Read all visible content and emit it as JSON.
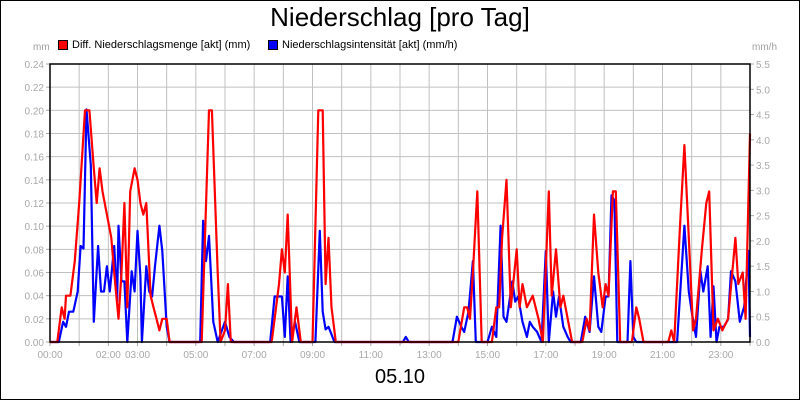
{
  "title": "Niederschlag [pro Tag]",
  "date_label": "05.10",
  "left_unit": "mm",
  "right_unit": "mm/h",
  "legend": [
    {
      "label": "Diff. Niederschlagsmenge [akt] (mm)",
      "color": "#ff0000"
    },
    {
      "label": "Niederschlagsintensität [akt] (mm/h)",
      "color": "#0000ff"
    }
  ],
  "chart_data": {
    "type": "line",
    "title": "Niederschlag [pro Tag]",
    "xlabel": "05.10",
    "ylabel_left": "mm",
    "ylabel_right": "mm/h",
    "x_range_hours": [
      0,
      24
    ],
    "x_tick_labels": [
      "00:00",
      "02:00",
      "03:00",
      "05:00",
      "07:00",
      "09:00",
      "11:00",
      "13:00",
      "15:00",
      "17:00",
      "19:00",
      "21:00",
      "23:00"
    ],
    "x_tick_positions_hours": [
      0,
      2,
      3,
      5,
      7,
      9,
      11,
      13,
      15,
      17,
      19,
      21,
      23
    ],
    "ylim_left": [
      0,
      0.24
    ],
    "y_ticks_left": [
      "0.00",
      "0.02",
      "0.04",
      "0.06",
      "0.08",
      "0.10",
      "0.12",
      "0.14",
      "0.16",
      "0.18",
      "0.20",
      "0.22",
      "0.24"
    ],
    "ylim_right": [
      0,
      5.5
    ],
    "y_ticks_right": [
      "0.0",
      "0.5",
      "1.0",
      "1.5",
      "2.0",
      "2.5",
      "3.0",
      "3.5",
      "4.0",
      "4.5",
      "5.0",
      "5.5"
    ],
    "grid": true,
    "legend_position": "top",
    "series": [
      {
        "name": "Diff. Niederschlagsmenge [akt] (mm)",
        "axis": "left",
        "color": "#ff0000",
        "points": [
          [
            0.0,
            0
          ],
          [
            0.25,
            0
          ],
          [
            0.4,
            0.03
          ],
          [
            0.5,
            0.02
          ],
          [
            0.55,
            0.04
          ],
          [
            0.7,
            0.04
          ],
          [
            0.85,
            0.07
          ],
          [
            1.0,
            0.12
          ],
          [
            1.1,
            0.16
          ],
          [
            1.2,
            0.2
          ],
          [
            1.35,
            0.2
          ],
          [
            1.5,
            0.15
          ],
          [
            1.6,
            0.12
          ],
          [
            1.7,
            0.15
          ],
          [
            1.8,
            0.13
          ],
          [
            1.95,
            0.11
          ],
          [
            2.1,
            0.09
          ],
          [
            2.2,
            0.06
          ],
          [
            2.35,
            0.02
          ],
          [
            2.45,
            0.06
          ],
          [
            2.55,
            0.12
          ],
          [
            2.65,
            0.03
          ],
          [
            2.75,
            0.13
          ],
          [
            2.9,
            0.15
          ],
          [
            3.0,
            0.14
          ],
          [
            3.1,
            0.12
          ],
          [
            3.2,
            0.11
          ],
          [
            3.3,
            0.12
          ],
          [
            3.45,
            0.04
          ],
          [
            3.55,
            0.03
          ],
          [
            3.65,
            0.02
          ],
          [
            3.75,
            0.01
          ],
          [
            3.85,
            0.02
          ],
          [
            4.0,
            0.02
          ],
          [
            4.1,
            0
          ],
          [
            5.2,
            0
          ],
          [
            5.45,
            0.2
          ],
          [
            5.55,
            0.2
          ],
          [
            5.75,
            0.06
          ],
          [
            5.85,
            0
          ],
          [
            6.0,
            0.01
          ],
          [
            6.1,
            0.05
          ],
          [
            6.2,
            0
          ],
          [
            7.6,
            0
          ],
          [
            7.85,
            0.05
          ],
          [
            7.95,
            0.08
          ],
          [
            8.05,
            0.06
          ],
          [
            8.15,
            0.11
          ],
          [
            8.3,
            0
          ],
          [
            8.45,
            0.03
          ],
          [
            8.6,
            0
          ],
          [
            9.0,
            0
          ],
          [
            9.2,
            0.2
          ],
          [
            9.35,
            0.2
          ],
          [
            9.45,
            0.05
          ],
          [
            9.55,
            0.09
          ],
          [
            9.65,
            0.03
          ],
          [
            9.8,
            0
          ],
          [
            14.0,
            0
          ],
          [
            14.2,
            0.03
          ],
          [
            14.3,
            0.03
          ],
          [
            14.4,
            0.02
          ],
          [
            14.5,
            0.06
          ],
          [
            14.65,
            0.13
          ],
          [
            14.8,
            0
          ],
          [
            15.15,
            0
          ],
          [
            15.3,
            0.03
          ],
          [
            15.4,
            0.03
          ],
          [
            15.5,
            0.09
          ],
          [
            15.65,
            0.14
          ],
          [
            15.8,
            0.03
          ],
          [
            16.0,
            0.08
          ],
          [
            16.1,
            0.03
          ],
          [
            16.2,
            0.05
          ],
          [
            16.35,
            0.03
          ],
          [
            16.55,
            0.04
          ],
          [
            16.75,
            0.02
          ],
          [
            16.9,
            0
          ],
          [
            17.1,
            0.13
          ],
          [
            17.2,
            0.04
          ],
          [
            17.35,
            0.08
          ],
          [
            17.5,
            0.03
          ],
          [
            17.6,
            0.04
          ],
          [
            17.75,
            0.02
          ],
          [
            17.9,
            0
          ],
          [
            18.25,
            0
          ],
          [
            18.4,
            0.02
          ],
          [
            18.5,
            0.01
          ],
          [
            18.65,
            0.11
          ],
          [
            18.8,
            0.06
          ],
          [
            18.95,
            0.03
          ],
          [
            19.05,
            0.05
          ],
          [
            19.15,
            0.04
          ],
          [
            19.3,
            0.13
          ],
          [
            19.4,
            0.13
          ],
          [
            19.55,
            0
          ],
          [
            19.95,
            0
          ],
          [
            20.1,
            0.03
          ],
          [
            20.2,
            0.02
          ],
          [
            20.35,
            0
          ],
          [
            21.2,
            0
          ],
          [
            21.3,
            0.01
          ],
          [
            21.4,
            0
          ],
          [
            21.6,
            0.1
          ],
          [
            21.75,
            0.17
          ],
          [
            21.9,
            0.09
          ],
          [
            22.05,
            0.01
          ],
          [
            22.15,
            0.02
          ],
          [
            22.35,
            0.08
          ],
          [
            22.5,
            0.12
          ],
          [
            22.6,
            0.13
          ],
          [
            22.75,
            0.01
          ],
          [
            22.9,
            0.02
          ],
          [
            23.05,
            0.01
          ],
          [
            23.25,
            0.02
          ],
          [
            23.5,
            0.09
          ],
          [
            23.6,
            0.05
          ],
          [
            23.75,
            0.06
          ],
          [
            23.85,
            0.02
          ],
          [
            24.0,
            0.18
          ]
        ]
      },
      {
        "name": "Niederschlagsintensität [akt] (mm/h)",
        "axis": "right",
        "color": "#0000ff",
        "points": [
          [
            0.0,
            0
          ],
          [
            0.3,
            0
          ],
          [
            0.45,
            0.4
          ],
          [
            0.55,
            0.3
          ],
          [
            0.65,
            0.6
          ],
          [
            0.8,
            0.6
          ],
          [
            0.95,
            1.0
          ],
          [
            1.05,
            1.9
          ],
          [
            1.15,
            1.85
          ],
          [
            1.25,
            4.6
          ],
          [
            1.4,
            3.5
          ],
          [
            1.5,
            0.4
          ],
          [
            1.65,
            1.9
          ],
          [
            1.75,
            1.0
          ],
          [
            1.85,
            1.0
          ],
          [
            1.95,
            1.5
          ],
          [
            2.05,
            1.0
          ],
          [
            2.2,
            1.9
          ],
          [
            2.3,
            0.8
          ],
          [
            2.35,
            2.3
          ],
          [
            2.45,
            1.2
          ],
          [
            2.55,
            1.2
          ],
          [
            2.65,
            0
          ],
          [
            2.8,
            1.4
          ],
          [
            2.9,
            1.0
          ],
          [
            3.0,
            2.2
          ],
          [
            3.1,
            1.3
          ],
          [
            3.15,
            0
          ],
          [
            3.3,
            1.5
          ],
          [
            3.4,
            1.0
          ],
          [
            3.5,
            0.9
          ],
          [
            3.6,
            1.5
          ],
          [
            3.75,
            2.3
          ],
          [
            3.85,
            1.8
          ],
          [
            4.0,
            0.3
          ],
          [
            4.1,
            0
          ],
          [
            5.15,
            0
          ],
          [
            5.25,
            2.4
          ],
          [
            5.35,
            1.6
          ],
          [
            5.45,
            2.1
          ],
          [
            5.6,
            0.4
          ],
          [
            5.75,
            0
          ],
          [
            6.0,
            0.4
          ],
          [
            6.15,
            0.1
          ],
          [
            6.3,
            0
          ],
          [
            7.55,
            0
          ],
          [
            7.7,
            0.9
          ],
          [
            7.95,
            0.9
          ],
          [
            8.05,
            0.1
          ],
          [
            8.15,
            1.3
          ],
          [
            8.25,
            0
          ],
          [
            8.4,
            0.4
          ],
          [
            8.55,
            0
          ],
          [
            9.1,
            0
          ],
          [
            9.25,
            2.2
          ],
          [
            9.35,
            0.6
          ],
          [
            9.45,
            0.25
          ],
          [
            9.55,
            0.3
          ],
          [
            9.65,
            0.15
          ],
          [
            9.75,
            0
          ],
          [
            12.1,
            0
          ],
          [
            12.2,
            0.1
          ],
          [
            12.3,
            0
          ],
          [
            13.8,
            0
          ],
          [
            13.95,
            0.5
          ],
          [
            14.1,
            0.3
          ],
          [
            14.2,
            0.2
          ],
          [
            14.35,
            0.6
          ],
          [
            14.5,
            1.6
          ],
          [
            14.6,
            0
          ],
          [
            15.0,
            0
          ],
          [
            15.15,
            0.3
          ],
          [
            15.3,
            0.1
          ],
          [
            15.45,
            2.3
          ],
          [
            15.55,
            0.5
          ],
          [
            15.65,
            0.4
          ],
          [
            15.85,
            1.2
          ],
          [
            15.95,
            0.8
          ],
          [
            16.05,
            0.9
          ],
          [
            16.2,
            0.4
          ],
          [
            16.35,
            0.1
          ],
          [
            16.45,
            0.4
          ],
          [
            16.55,
            0.3
          ],
          [
            16.7,
            0.2
          ],
          [
            16.85,
            0
          ],
          [
            17.0,
            1.8
          ],
          [
            17.1,
            0
          ],
          [
            17.25,
            1.0
          ],
          [
            17.35,
            0.5
          ],
          [
            17.45,
            0.9
          ],
          [
            17.6,
            0.3
          ],
          [
            17.75,
            0.1
          ],
          [
            17.85,
            0
          ],
          [
            18.2,
            0
          ],
          [
            18.35,
            0.5
          ],
          [
            18.5,
            0.2
          ],
          [
            18.65,
            1.3
          ],
          [
            18.8,
            0.3
          ],
          [
            18.9,
            0.2
          ],
          [
            19.05,
            0.9
          ],
          [
            19.15,
            0.9
          ],
          [
            19.25,
            2.9
          ],
          [
            19.35,
            2.8
          ],
          [
            19.45,
            0
          ],
          [
            19.8,
            0
          ],
          [
            19.9,
            1.6
          ],
          [
            20.0,
            0.1
          ],
          [
            20.1,
            0
          ],
          [
            21.5,
            0
          ],
          [
            21.75,
            2.3
          ],
          [
            21.9,
            1.0
          ],
          [
            22.0,
            0.6
          ],
          [
            22.15,
            0.1
          ],
          [
            22.3,
            1.4
          ],
          [
            22.4,
            1.0
          ],
          [
            22.55,
            1.5
          ],
          [
            22.65,
            0.1
          ],
          [
            22.75,
            1.1
          ],
          [
            22.85,
            0
          ],
          [
            22.95,
            0.3
          ],
          [
            23.1,
            0.3
          ],
          [
            23.25,
            0.45
          ],
          [
            23.35,
            1.4
          ],
          [
            23.5,
            1.2
          ],
          [
            23.65,
            0.4
          ],
          [
            23.8,
            0.7
          ],
          [
            23.95,
            1.8
          ],
          [
            24.0,
            0.1
          ]
        ]
      }
    ]
  }
}
